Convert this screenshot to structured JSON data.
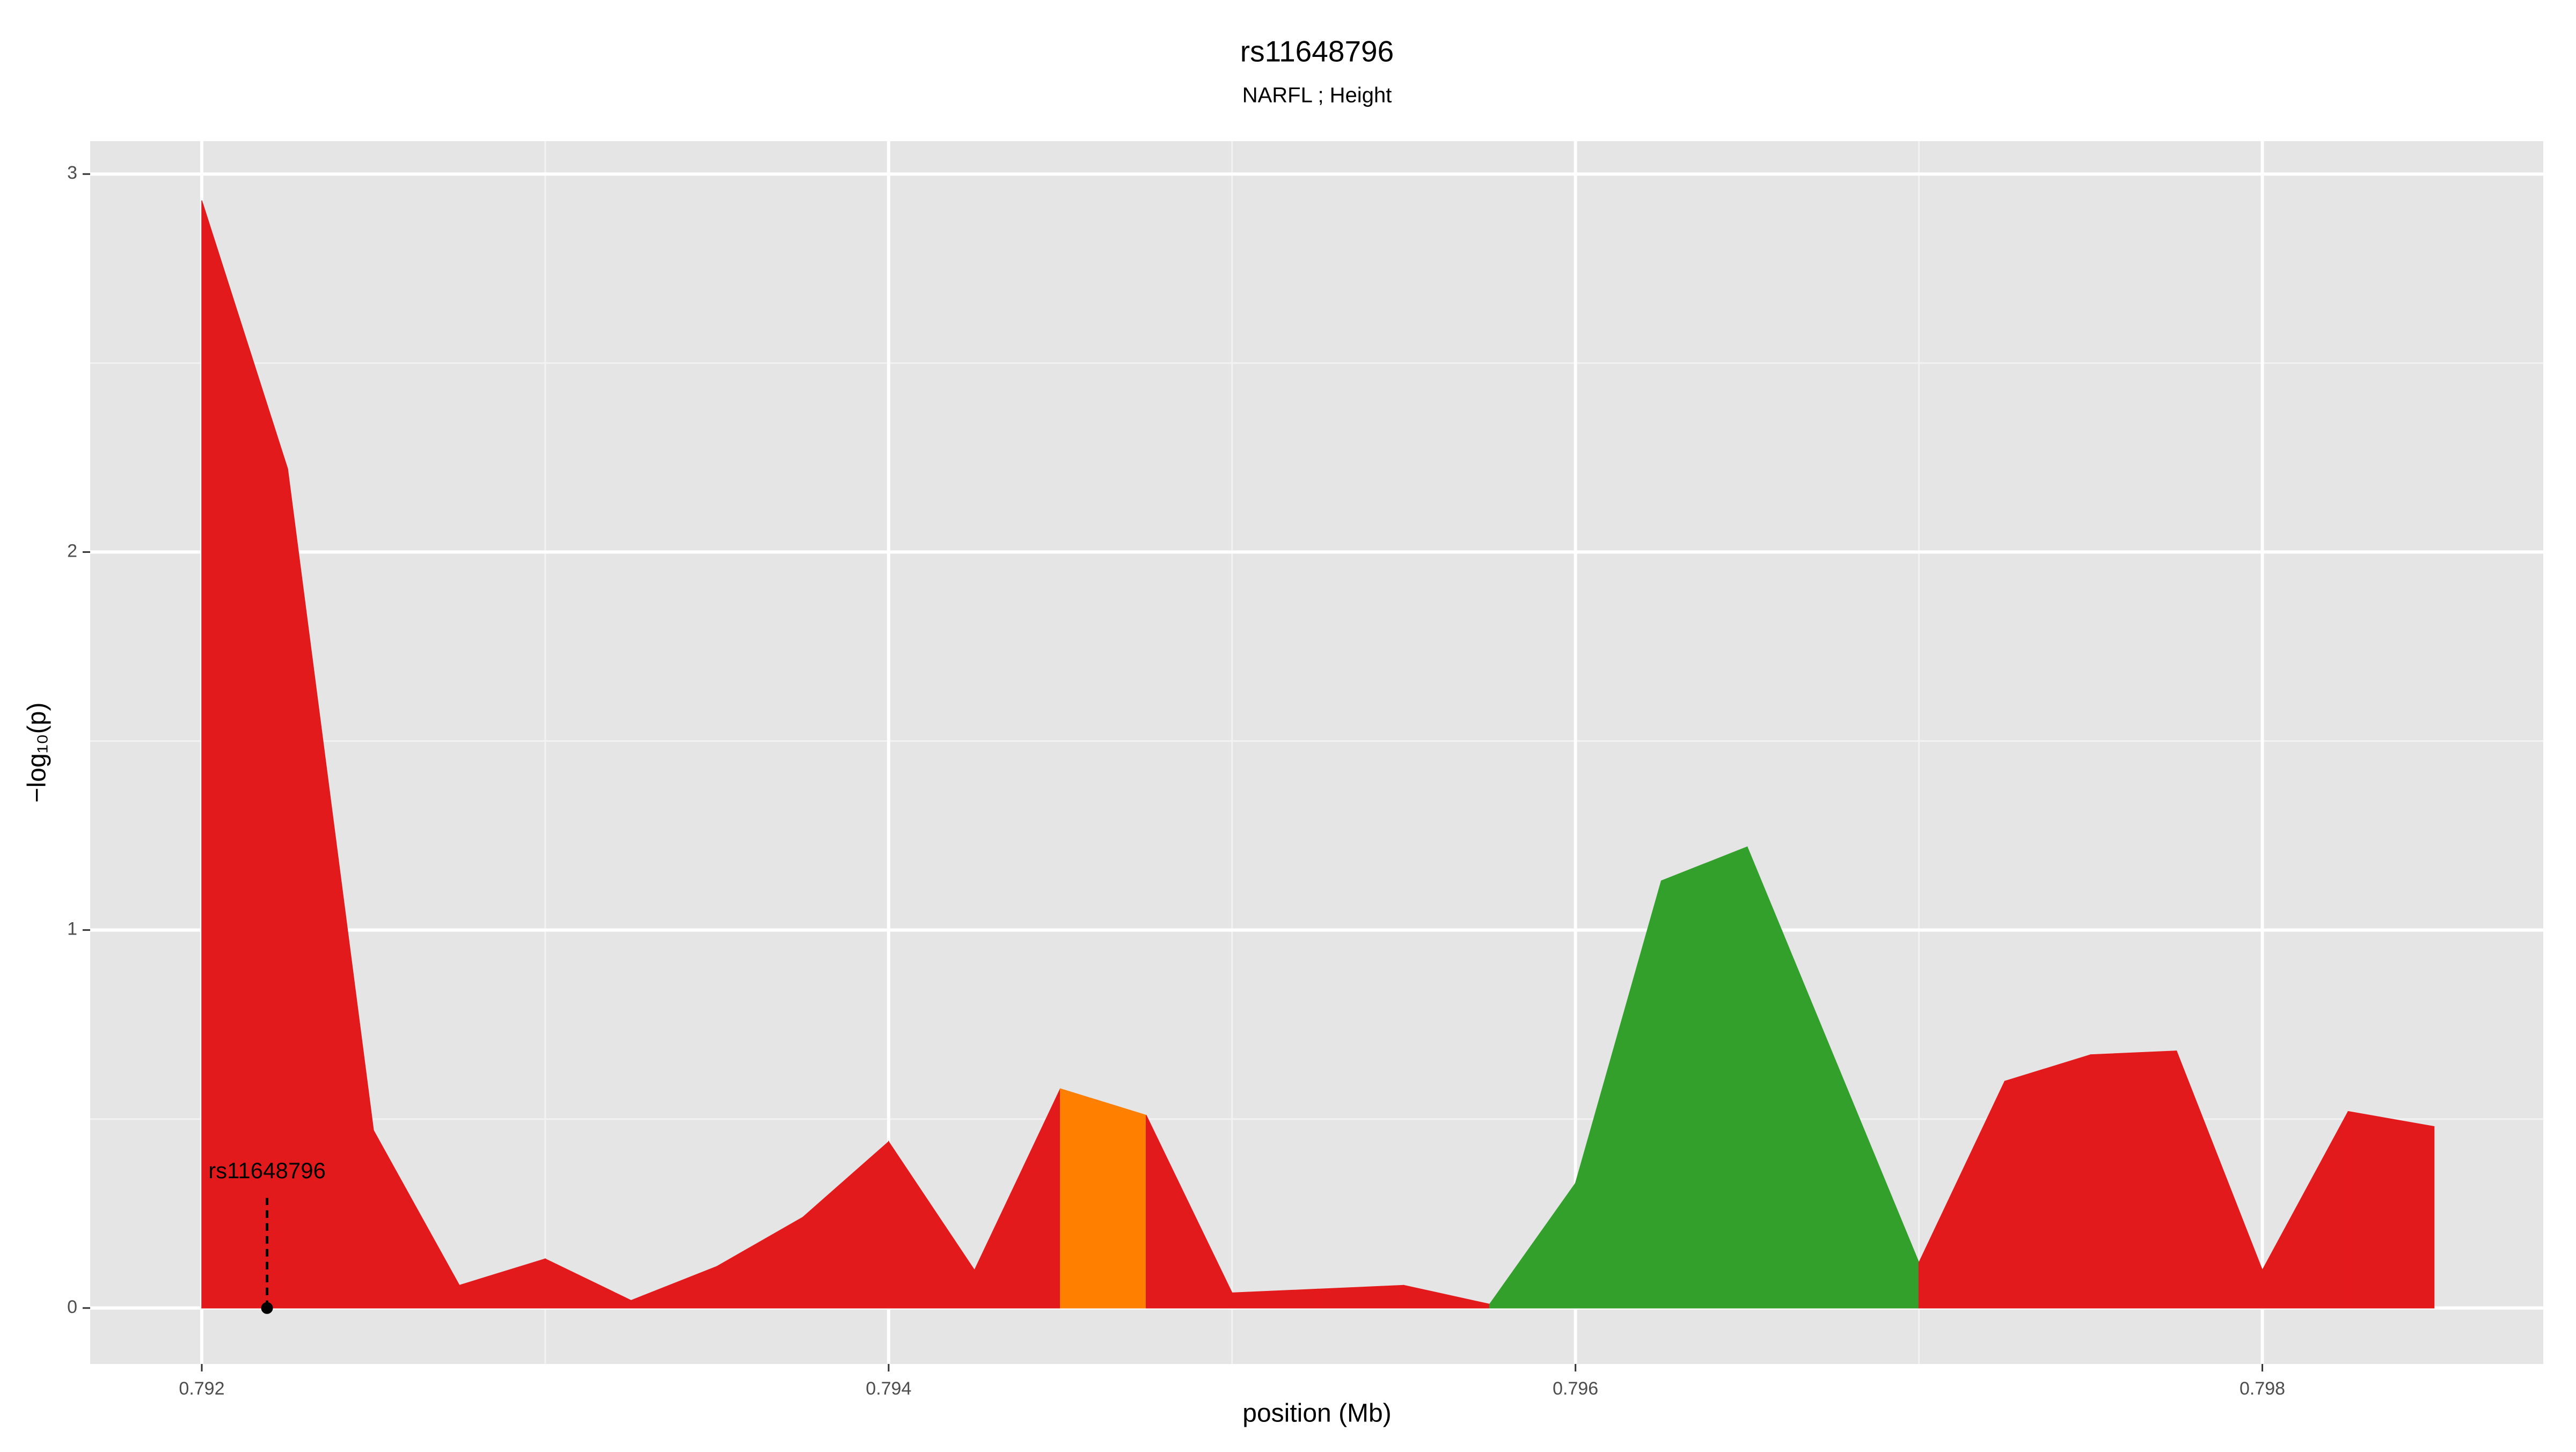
{
  "chart_data": {
    "type": "area",
    "title": "rs11648796",
    "subtitle": "NARFL ; Height",
    "x_label": "position (Mb)",
    "y_label": "−log₁₀(p)",
    "x": [
      0.792,
      0.79225,
      0.7925,
      0.79275,
      0.793,
      0.79325,
      0.7935,
      0.79375,
      0.794,
      0.79425,
      0.7945,
      0.79475,
      0.795,
      0.79525,
      0.7955,
      0.79575,
      0.796,
      0.79625,
      0.7965,
      0.79675,
      0.797,
      0.79725,
      0.7975,
      0.79775,
      0.798,
      0.79825,
      0.7985
    ],
    "values": [
      2.93,
      2.22,
      0.47,
      0.06,
      0.13,
      0.02,
      0.11,
      0.24,
      0.44,
      0.1,
      0.58,
      0.51,
      0.04,
      0.05,
      0.06,
      0.01,
      0.33,
      1.13,
      1.22,
      0.67,
      0.12,
      0.6,
      0.67,
      0.68,
      0.1,
      0.52,
      0.48
    ],
    "fill_colors": [
      "#e31a1c",
      "#e31a1c",
      "#e31a1c",
      "#e31a1c",
      "#e31a1c",
      "#e31a1c",
      "#e31a1c",
      "#e31a1c",
      "#e31a1c",
      "#e31a1c",
      "#ff7f00",
      "#e31a1c",
      "#e31a1c",
      "#e31a1c",
      "#e31a1c",
      "#33a02c",
      "#33a02c",
      "#33a02c",
      "#33a02c",
      "#33a02c",
      "#e31a1c",
      "#e31a1c",
      "#e31a1c",
      "#e31a1c",
      "#e31a1c",
      "#e31a1c"
    ],
    "annotation": {
      "text": "rs11648796",
      "x": 0.79219,
      "y": 0
    },
    "xlim": [
      0.791675,
      0.798818
    ],
    "ylim": [
      -0.148,
      3.087
    ],
    "xticks": [
      0.792,
      0.794,
      0.796,
      0.798
    ],
    "yticks": [
      0,
      1,
      2,
      3
    ],
    "grid": true
  }
}
